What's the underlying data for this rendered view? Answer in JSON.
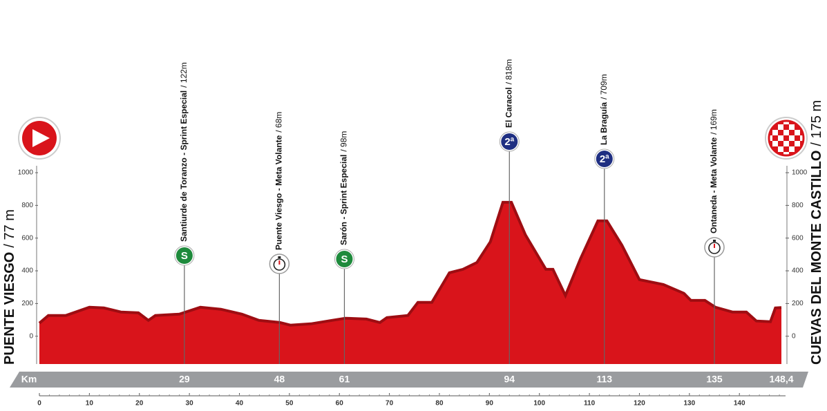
{
  "chart_data": {
    "type": "area",
    "color": "#d9141b",
    "edge_color": "#9e0d12",
    "x": [
      0,
      1.8,
      5.3,
      10,
      12.9,
      16.3,
      19.8,
      21.8,
      23.2,
      28,
      32.2,
      36.3,
      40.5,
      43.9,
      48.1,
      50.2,
      54.3,
      58.5,
      61.2,
      65.4,
      68.1,
      69.5,
      73.7,
      75.7,
      78.5,
      82,
      84.7,
      87.5,
      90.2,
      92.7,
      94.4,
      97.2,
      101.3,
      102.7,
      105.2,
      108.2,
      111.7,
      113.5,
      116.5,
      120,
      124.8,
      128.9,
      130.3,
      133.1,
      135.2,
      138.6,
      141.4,
      143.4,
      146.2,
      147.2,
      148.4
    ],
    "values": [
      80,
      127,
      127,
      177,
      173,
      148,
      143,
      97,
      127,
      135,
      177,
      165,
      135,
      97,
      84,
      68,
      76,
      97,
      110,
      105,
      84,
      114,
      127,
      207,
      207,
      388,
      409,
      451,
      578,
      819,
      819,
      620,
      409,
      409,
      249,
      473,
      705,
      705,
      557,
      346,
      316,
      262,
      219,
      219,
      177,
      148,
      148,
      93,
      89,
      173,
      175
    ],
    "xlim": [
      0,
      148.4
    ],
    "ylim": [
      -170,
      1000
    ],
    "xticks": [
      0,
      10,
      20,
      30,
      40,
      50,
      60,
      70,
      80,
      90,
      100,
      110,
      120,
      130,
      140
    ],
    "yticks": [
      0,
      200,
      400,
      600,
      800,
      1000
    ],
    "start": {
      "name": "PUENTE VIESGO",
      "elevation_label": "/ 77 m"
    },
    "finish": {
      "name": "CUEVAS DEL MONTE CASTILLO",
      "elevation_label": "/ 175 m"
    },
    "km_bar": {
      "label": "Km",
      "end": {
        "value": 148.4,
        "label": "148,4"
      }
    },
    "points": [
      {
        "km": 29,
        "name": "Santiurde de Toranzo - Sprint Especial",
        "elevation_label": "/ 122m",
        "icon": "sprint",
        "icon_text": "S"
      },
      {
        "km": 48,
        "name": "Puente Viesgo - Meta Volante",
        "elevation_label": "/ 68m",
        "icon": "stopwatch"
      },
      {
        "km": 61,
        "name": "Sarón - Sprint Especial",
        "elevation_label": "/ 98m",
        "icon": "sprint",
        "icon_text": "S"
      },
      {
        "km": 94,
        "name": "El Caracol",
        "elevation_label": "/ 818m",
        "icon": "climb",
        "icon_text": "2ª"
      },
      {
        "km": 113,
        "name": "La Braguía",
        "elevation_label": "/ 709m",
        "icon": "climb",
        "icon_text": "2ª"
      },
      {
        "km": 135,
        "name": "Ontaneda - Meta Volante",
        "elevation_label": "/ 169m",
        "icon": "stopwatch"
      }
    ]
  }
}
